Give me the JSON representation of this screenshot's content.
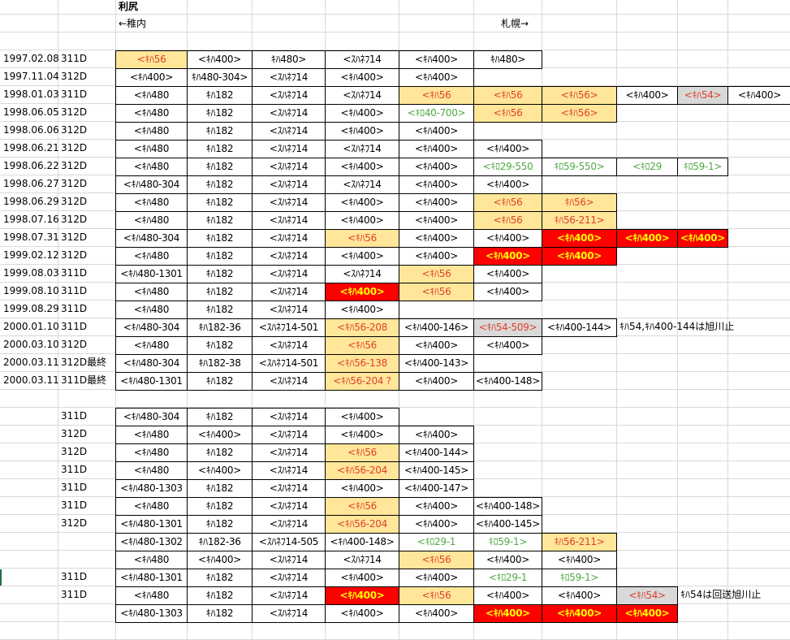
{
  "header": {
    "title": "利尻",
    "left_direction": "←稚内",
    "right_direction": "札幌→"
  },
  "colors": {
    "orange_fill": "#ffe699",
    "red_fill": "#ff0000",
    "gray_fill": "#d9d9d9",
    "red_text": "#e0402c",
    "yellow_text": "#ffff00",
    "green_text": "#4fa843",
    "gridline": "#d9d9d9"
  },
  "rows": [
    {
      "date": "1997.02.08",
      "train": "311D",
      "cars": [
        {
          "t": "<ｷﾊ56",
          "s": "orange"
        },
        {
          "t": "<ｷﾊ400>",
          "s": "plain"
        },
        {
          "t": "ｷﾊ480>",
          "s": "plain"
        },
        {
          "t": "<ｽﾊﾈﾌ14",
          "s": "plain"
        },
        {
          "t": "<ｷﾊ400>",
          "s": "plain"
        },
        {
          "t": "ｷﾊ480>",
          "s": "plain"
        }
      ]
    },
    {
      "date": "1997.11.04",
      "train": "312D",
      "cars": [
        {
          "t": "<ｷﾊ400>",
          "s": "plain"
        },
        {
          "t": "ｷﾊ480-304>",
          "s": "plain"
        },
        {
          "t": "<ｽﾊﾈﾌ14",
          "s": "plain"
        },
        {
          "t": "<ｷﾊ400>",
          "s": "plain"
        },
        {
          "t": "<ｷﾊ400>",
          "s": "plain"
        }
      ]
    },
    {
      "date": "1998.01.03",
      "train": "311D",
      "cars": [
        {
          "t": "<ｷﾊ480",
          "s": "plain"
        },
        {
          "t": "ｷﾊ182",
          "s": "plain"
        },
        {
          "t": "<ｽﾊﾈﾌ14",
          "s": "plain"
        },
        {
          "t": "<ｽﾊﾈﾌ14",
          "s": "plain"
        },
        {
          "t": "<ｷﾊ56",
          "s": "orange"
        },
        {
          "t": "<ｷﾊ56",
          "s": "orange"
        },
        {
          "t": "<ｷﾊ56>",
          "s": "orange"
        },
        {
          "t": "<ｷﾊ400>",
          "s": "plain"
        },
        {
          "t": "<ｷﾊ54>",
          "s": "gray"
        },
        {
          "t": "<ｷﾊ400>",
          "s": "plain"
        }
      ]
    },
    {
      "date": "1998.06.05",
      "train": "312D",
      "cars": [
        {
          "t": "<ｷﾊ480",
          "s": "plain"
        },
        {
          "t": "ｷﾊ182",
          "s": "plain"
        },
        {
          "t": "<ｽﾊﾈﾌ14",
          "s": "plain"
        },
        {
          "t": "<ｷﾊ400>",
          "s": "plain"
        },
        {
          "t": "<ｷﾛ40-700>",
          "s": "green"
        },
        {
          "t": "<ｷﾊ56",
          "s": "orange"
        },
        {
          "t": "<ｷﾊ56>",
          "s": "orange"
        }
      ]
    },
    {
      "date": "1998.06.06",
      "train": "312D",
      "cars": [
        {
          "t": "<ｷﾊ480",
          "s": "plain"
        },
        {
          "t": "ｷﾊ182",
          "s": "plain"
        },
        {
          "t": "<ｽﾊﾈﾌ14",
          "s": "plain"
        },
        {
          "t": "<ｷﾊ400>",
          "s": "plain"
        },
        {
          "t": "<ｷﾊ400>",
          "s": "plain"
        }
      ]
    },
    {
      "date": "1998.06.21",
      "train": "312D",
      "cars": [
        {
          "t": "<ｷﾊ480",
          "s": "plain"
        },
        {
          "t": "ｷﾊ182",
          "s": "plain"
        },
        {
          "t": "<ｽﾊﾈﾌ14",
          "s": "plain"
        },
        {
          "t": "<ｽﾊﾈﾌ14",
          "s": "plain"
        },
        {
          "t": "<ｷﾊ400>",
          "s": "plain"
        },
        {
          "t": "<ｷﾊ400>",
          "s": "plain"
        }
      ]
    },
    {
      "date": "1998.06.22",
      "train": "312D",
      "cars": [
        {
          "t": "<ｷﾊ480",
          "s": "plain"
        },
        {
          "t": "ｷﾊ182",
          "s": "plain"
        },
        {
          "t": "<ｽﾊﾈﾌ14",
          "s": "plain"
        },
        {
          "t": "<ｷﾊ400>",
          "s": "plain"
        },
        {
          "t": "<ｷﾊ400>",
          "s": "plain"
        },
        {
          "t": "<ｷﾛ29-550",
          "s": "green"
        },
        {
          "t": "ｷﾛ59-550>",
          "s": "green"
        },
        {
          "t": "<ｷﾛ29",
          "s": "green"
        },
        {
          "t": "ｷﾛ59-1>",
          "s": "green"
        }
      ]
    },
    {
      "date": "1998.06.27",
      "train": "312D",
      "cars": [
        {
          "t": "<ｷﾊ480-304",
          "s": "plain"
        },
        {
          "t": "ｷﾊ182",
          "s": "plain"
        },
        {
          "t": "<ｽﾊﾈﾌ14",
          "s": "plain"
        },
        {
          "t": "<ｽﾊﾈﾌ14",
          "s": "plain"
        },
        {
          "t": "<ｷﾊ400>",
          "s": "plain"
        },
        {
          "t": "<ｷﾊ400>",
          "s": "plain"
        }
      ]
    },
    {
      "date": "1998.06.29",
      "train": "312D",
      "cars": [
        {
          "t": "<ｷﾊ480",
          "s": "plain"
        },
        {
          "t": "ｷﾊ182",
          "s": "plain"
        },
        {
          "t": "<ｽﾊﾈﾌ14",
          "s": "plain"
        },
        {
          "t": "<ｷﾊ400>",
          "s": "plain"
        },
        {
          "t": "<ｷﾊ400>",
          "s": "plain"
        },
        {
          "t": "<ｷﾊ56",
          "s": "orange"
        },
        {
          "t": "ｷﾊ56>",
          "s": "orange"
        }
      ]
    },
    {
      "date": "1998.07.16",
      "train": "312D",
      "cars": [
        {
          "t": "<ｷﾊ480",
          "s": "plain"
        },
        {
          "t": "ｷﾊ182",
          "s": "plain"
        },
        {
          "t": "<ｽﾊﾈﾌ14",
          "s": "plain"
        },
        {
          "t": "<ｷﾊ400>",
          "s": "plain"
        },
        {
          "t": "<ｷﾊ400>",
          "s": "plain"
        },
        {
          "t": "<ｷﾊ56",
          "s": "orange"
        },
        {
          "t": "ｷﾊ56-211>",
          "s": "orange"
        }
      ]
    },
    {
      "date": "1998.07.31",
      "train": "312D",
      "cars": [
        {
          "t": "<ｷﾊ480-304",
          "s": "plain"
        },
        {
          "t": "ｷﾊ182",
          "s": "plain"
        },
        {
          "t": "<ｽﾊﾈﾌ14",
          "s": "plain"
        },
        {
          "t": "<ｷﾊ56",
          "s": "orange"
        },
        {
          "t": "<ｷﾊ400>",
          "s": "plain"
        },
        {
          "t": "<ｷﾊ400>",
          "s": "plain"
        },
        {
          "t": "<ｷﾊ400>",
          "s": "red"
        },
        {
          "t": "<ｷﾊ400>",
          "s": "red"
        },
        {
          "t": "<ｷﾊ400>",
          "s": "red"
        }
      ]
    },
    {
      "date": "1999.02.12",
      "train": "312D",
      "cars": [
        {
          "t": "<ｷﾊ480",
          "s": "plain"
        },
        {
          "t": "ｷﾊ182",
          "s": "plain"
        },
        {
          "t": "<ｽﾊﾈﾌ14",
          "s": "plain"
        },
        {
          "t": "<ｷﾊ400>",
          "s": "plain"
        },
        {
          "t": "<ｷﾊ400>",
          "s": "plain"
        },
        {
          "t": "<ｷﾊ400>",
          "s": "red"
        },
        {
          "t": "<ｷﾊ400>",
          "s": "red"
        }
      ]
    },
    {
      "date": "1999.08.03",
      "train": "311D",
      "cars": [
        {
          "t": "<ｷﾊ480-1301",
          "s": "plain"
        },
        {
          "t": "ｷﾊ182",
          "s": "plain"
        },
        {
          "t": "<ｽﾊﾈﾌ14",
          "s": "plain"
        },
        {
          "t": "<ｽﾊﾈﾌ14",
          "s": "plain"
        },
        {
          "t": "<ｷﾊ56",
          "s": "orange"
        },
        {
          "t": "<ｷﾊ400>",
          "s": "plain"
        }
      ]
    },
    {
      "date": "1999.08.10",
      "train": "311D",
      "cars": [
        {
          "t": "<ｷﾊ480",
          "s": "plain"
        },
        {
          "t": "ｷﾊ182",
          "s": "plain"
        },
        {
          "t": "<ｽﾊﾈﾌ14",
          "s": "plain"
        },
        {
          "t": "<ｷﾊ400>",
          "s": "red"
        },
        {
          "t": "<ｷﾊ56",
          "s": "orange"
        },
        {
          "t": "<ｷﾊ400>",
          "s": "plain"
        }
      ]
    },
    {
      "date": "1999.08.29",
      "train": "311D",
      "cars": [
        {
          "t": "<ｷﾊ480",
          "s": "plain"
        },
        {
          "t": "ｷﾊ182",
          "s": "plain"
        },
        {
          "t": "<ｽﾊﾈﾌ14",
          "s": "plain"
        },
        {
          "t": "<ｷﾊ400>",
          "s": "plain"
        }
      ]
    },
    {
      "date": "2000.01.10",
      "train": "311D",
      "note": "ｷﾊ54,ｷﾊ400-144は旭川止",
      "cars": [
        {
          "t": "<ｷﾊ480-304",
          "s": "plain"
        },
        {
          "t": "ｷﾊ182-36",
          "s": "plain"
        },
        {
          "t": "<ｽﾊﾈﾌ14-501",
          "s": "plain"
        },
        {
          "t": "<ｷﾊ56-208",
          "s": "orange"
        },
        {
          "t": "<ｷﾊ400-146>",
          "s": "plain"
        },
        {
          "t": "<ｷﾊ54-509>",
          "s": "gray"
        },
        {
          "t": "<ｷﾊ400-144>",
          "s": "plain"
        }
      ]
    },
    {
      "date": "2000.03.10",
      "train": "312D",
      "cars": [
        {
          "t": "<ｷﾊ480",
          "s": "plain"
        },
        {
          "t": "ｷﾊ182",
          "s": "plain"
        },
        {
          "t": "<ｽﾊﾈﾌ14",
          "s": "plain"
        },
        {
          "t": "<ｷﾊ56",
          "s": "orange"
        },
        {
          "t": "<ｷﾊ400>",
          "s": "plain"
        },
        {
          "t": "<ｷﾊ400>",
          "s": "plain"
        }
      ]
    },
    {
      "date": "2000.03.11",
      "train": "312D最終",
      "cars": [
        {
          "t": "<ｷﾊ480-304",
          "s": "plain"
        },
        {
          "t": "ｷﾊ182-38",
          "s": "plain"
        },
        {
          "t": "<ｽﾊﾈﾌ14-501",
          "s": "plain"
        },
        {
          "t": "<ｷﾊ56-138",
          "s": "orange"
        },
        {
          "t": "<ｷﾊ400-143>",
          "s": "plain"
        }
      ]
    },
    {
      "date": "2000.03.11",
      "train": "311D最終",
      "cars": [
        {
          "t": "<ｷﾊ480-1301",
          "s": "plain"
        },
        {
          "t": "ｷﾊ182",
          "s": "plain"
        },
        {
          "t": "<ｽﾊﾈﾌ14",
          "s": "plain"
        },
        {
          "t": "<ｷﾊ56-204 ?",
          "s": "orange"
        },
        {
          "t": "<ｷﾊ400>",
          "s": "plain"
        },
        {
          "t": "<ｷﾊ400-148>",
          "s": "plain"
        }
      ]
    },
    {
      "gap": true
    },
    {
      "date": "",
      "train": "311D",
      "cars": [
        {
          "t": "<ｷﾊ480-304",
          "s": "plain"
        },
        {
          "t": "ｷﾊ182",
          "s": "plain"
        },
        {
          "t": "<ｽﾊﾈﾌ14",
          "s": "plain"
        },
        {
          "t": "<ｷﾊ400>",
          "s": "plain"
        }
      ]
    },
    {
      "date": "",
      "train": "312D",
      "cars": [
        {
          "t": "<ｷﾊ480",
          "s": "plain"
        },
        {
          "t": "<ｷﾊ400>",
          "s": "plain"
        },
        {
          "t": "<ｽﾊﾈﾌ14",
          "s": "plain"
        },
        {
          "t": "<ｷﾊ400>",
          "s": "plain"
        },
        {
          "t": "<ｷﾊ400>",
          "s": "plain"
        }
      ]
    },
    {
      "date": "",
      "train": "312D",
      "cars": [
        {
          "t": "<ｷﾊ480",
          "s": "plain"
        },
        {
          "t": "ｷﾊ182",
          "s": "plain"
        },
        {
          "t": "<ｽﾊﾈﾌ14",
          "s": "plain"
        },
        {
          "t": "<ｷﾊ56",
          "s": "orange"
        },
        {
          "t": "<ｷﾊ400-144>",
          "s": "plain"
        }
      ]
    },
    {
      "date": "",
      "train": "311D",
      "cars": [
        {
          "t": "<ｷﾊ480",
          "s": "plain"
        },
        {
          "t": "<ｷﾊ400>",
          "s": "plain"
        },
        {
          "t": "<ｽﾊﾈﾌ14",
          "s": "plain"
        },
        {
          "t": "<ｷﾊ56-204",
          "s": "orange"
        },
        {
          "t": "<ｷﾊ400-145>",
          "s": "plain"
        }
      ]
    },
    {
      "date": "",
      "train": "311D",
      "cars": [
        {
          "t": "<ｷﾊ480-1303",
          "s": "plain"
        },
        {
          "t": "ｷﾊ182",
          "s": "plain"
        },
        {
          "t": "<ｽﾊﾈﾌ14",
          "s": "plain"
        },
        {
          "t": "<ｷﾊ400>",
          "s": "plain"
        },
        {
          "t": "<ｷﾊ400-147>",
          "s": "plain"
        }
      ]
    },
    {
      "date": "",
      "train": "311D",
      "cars": [
        {
          "t": "<ｷﾊ480",
          "s": "plain"
        },
        {
          "t": "ｷﾊ182",
          "s": "plain"
        },
        {
          "t": "<ｽﾊﾈﾌ14",
          "s": "plain"
        },
        {
          "t": "<ｷﾊ56",
          "s": "orange"
        },
        {
          "t": "<ｷﾊ400>",
          "s": "plain"
        },
        {
          "t": "<ｷﾊ400-148>",
          "s": "plain"
        }
      ]
    },
    {
      "date": "",
      "train": "312D",
      "cars": [
        {
          "t": "<ｷﾊ480-1301",
          "s": "plain"
        },
        {
          "t": "ｷﾊ182",
          "s": "plain"
        },
        {
          "t": "<ｽﾊﾈﾌ14",
          "s": "plain"
        },
        {
          "t": "<ｷﾊ56-204",
          "s": "orange"
        },
        {
          "t": "<ｷﾊ400>",
          "s": "plain"
        },
        {
          "t": "<ｷﾊ400-145>",
          "s": "plain"
        }
      ]
    },
    {
      "date": "",
      "train": "",
      "cars": [
        {
          "t": "<ｷﾊ480-1302",
          "s": "plain"
        },
        {
          "t": "ｷﾊ182-36",
          "s": "plain"
        },
        {
          "t": "<ｽﾊﾈﾌ14-505",
          "s": "plain"
        },
        {
          "t": "<ｷﾊ400-148>",
          "s": "plain"
        },
        {
          "t": "<ｷﾛ29-1",
          "s": "green"
        },
        {
          "t": "ｷﾛ59-1>",
          "s": "green"
        },
        {
          "t": "ｷﾊ56-211>",
          "s": "orange"
        }
      ]
    },
    {
      "date": "",
      "train": "",
      "cars": [
        {
          "t": "<ｷﾊ480",
          "s": "plain"
        },
        {
          "t": "<ｷﾊ400>",
          "s": "plain"
        },
        {
          "t": "<ｽﾊﾈﾌ14",
          "s": "plain"
        },
        {
          "t": "<ｽﾊﾈﾌ14",
          "s": "plain"
        },
        {
          "t": "<ｷﾊ56",
          "s": "orange"
        },
        {
          "t": "<ｷﾊ400>",
          "s": "plain"
        },
        {
          "t": "<ｷﾊ400>",
          "s": "plain"
        }
      ]
    },
    {
      "date": "",
      "train": "311D",
      "cars": [
        {
          "t": "<ｷﾊ480-1301",
          "s": "plain"
        },
        {
          "t": "ｷﾊ182",
          "s": "plain"
        },
        {
          "t": "<ｽﾊﾈﾌ14",
          "s": "plain"
        },
        {
          "t": "<ｷﾊ400>",
          "s": "plain"
        },
        {
          "t": "<ｷﾊ400>",
          "s": "plain"
        },
        {
          "t": "<ｷﾛ29-1",
          "s": "green"
        },
        {
          "t": "ｷﾛ59-1>",
          "s": "green"
        }
      ]
    },
    {
      "date": "",
      "train": "311D",
      "note": "ｷﾊ54は回送旭川止",
      "cars": [
        {
          "t": "<ｷﾊ480",
          "s": "plain"
        },
        {
          "t": "ｷﾊ182",
          "s": "plain"
        },
        {
          "t": "<ｽﾊﾈﾌ14",
          "s": "plain"
        },
        {
          "t": "<ｷﾊ400>",
          "s": "red"
        },
        {
          "t": "<ｷﾊ56",
          "s": "orange"
        },
        {
          "t": "<ｷﾊ400>",
          "s": "plain"
        },
        {
          "t": "<ｷﾊ400>",
          "s": "plain"
        },
        {
          "t": "<ｷﾊ54>",
          "s": "gray"
        }
      ]
    },
    {
      "date": "",
      "train": "",
      "cars": [
        {
          "t": "<ｷﾊ480-1303",
          "s": "plain"
        },
        {
          "t": "ｷﾊ182",
          "s": "plain"
        },
        {
          "t": "<ｽﾊﾈﾌ14",
          "s": "plain"
        },
        {
          "t": "<ｷﾊ400>",
          "s": "plain"
        },
        {
          "t": "<ｷﾊ400>",
          "s": "plain"
        },
        {
          "t": "<ｷﾊ400>",
          "s": "red"
        },
        {
          "t": "<ｷﾊ400>",
          "s": "red"
        },
        {
          "t": "<ｷﾊ400>",
          "s": "red"
        }
      ]
    }
  ]
}
